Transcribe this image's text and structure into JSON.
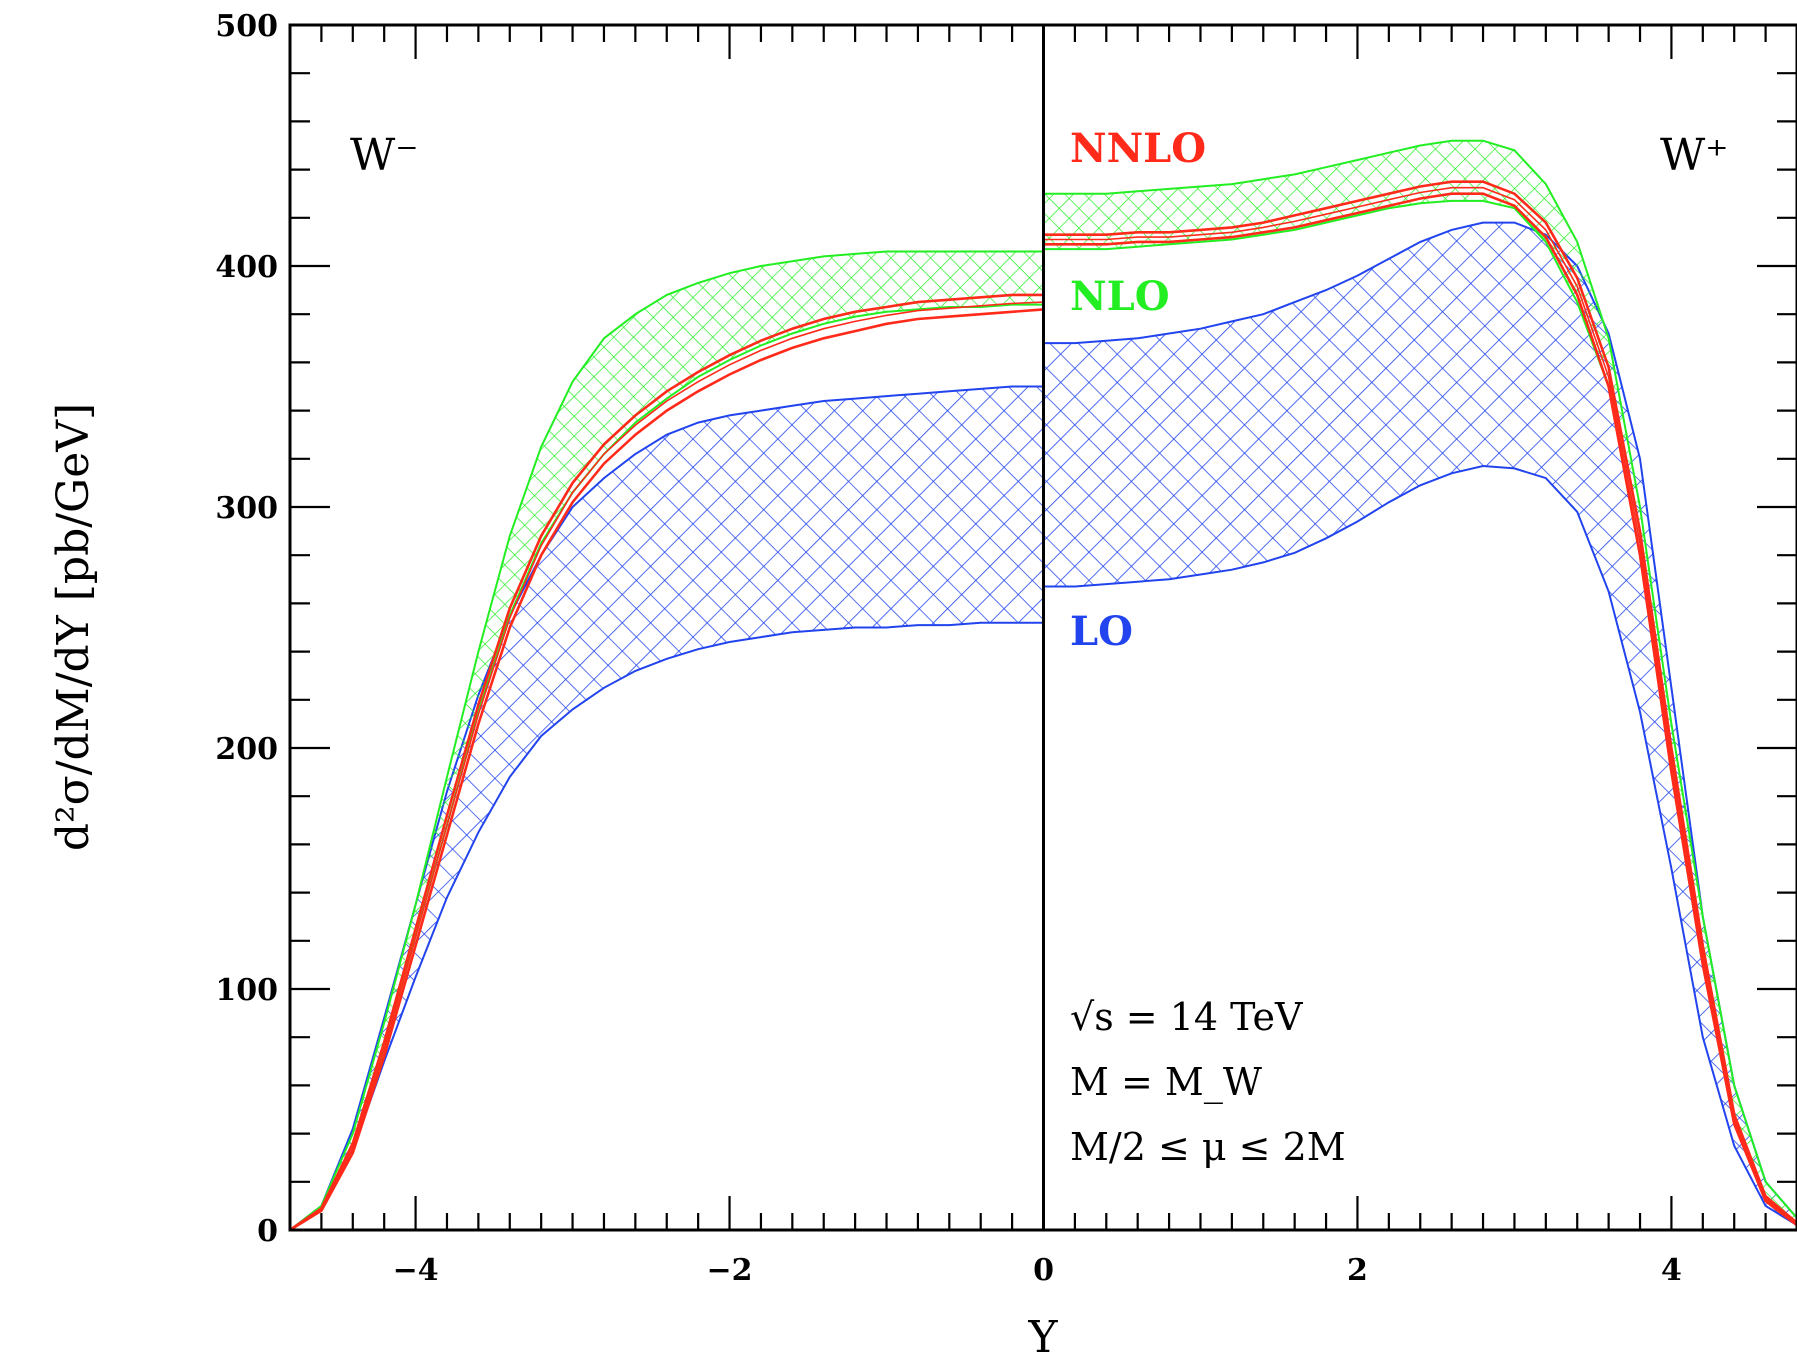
{
  "chart_data": {
    "type": "area",
    "xlabel": "Y",
    "ylabel": "d²σ/dM/dY [pb/GeV]",
    "xlim": [
      -4.8,
      4.8
    ],
    "ylim": [
      0,
      500
    ],
    "x_ticks": [
      "−4",
      "−2",
      "0",
      "2",
      "4"
    ],
    "x_tick_values": [
      -4,
      -2,
      0,
      2,
      4
    ],
    "y_ticks": [
      "0",
      "100",
      "200",
      "300",
      "400",
      "500"
    ],
    "y_tick_values": [
      0,
      100,
      200,
      300,
      400,
      500
    ],
    "grid": false,
    "corner_labels": {
      "left": "W⁻",
      "right": "W⁺"
    },
    "annotations": [
      "√s = 14 TeV",
      "M = M_W",
      "M/2 ≤ μ ≤ 2M"
    ],
    "colors": {
      "NNLO": "#ff2a1a",
      "NLO": "#22ee22",
      "LO": "#2244ee"
    },
    "series": [
      {
        "name": "LO",
        "label_position": "center",
        "W_minus": {
          "x": [
            -4.8,
            -4.6,
            -4.4,
            -4.2,
            -4.0,
            -3.8,
            -3.6,
            -3.4,
            -3.2,
            -3.0,
            -2.8,
            -2.6,
            -2.4,
            -2.2,
            -2.0,
            -1.8,
            -1.6,
            -1.4,
            -1.2,
            -1.0,
            -0.8,
            -0.6,
            -0.4,
            -0.2,
            0.0
          ],
          "upper": [
            0,
            10,
            42,
            88,
            135,
            182,
            222,
            255,
            280,
            300,
            312,
            322,
            330,
            335,
            338,
            340,
            342,
            344,
            345,
            346,
            347,
            348,
            349,
            350,
            350
          ],
          "lower": [
            0,
            8,
            33,
            70,
            105,
            138,
            165,
            188,
            205,
            216,
            225,
            232,
            237,
            241,
            244,
            246,
            248,
            249,
            250,
            250,
            251,
            251,
            252,
            252,
            252
          ]
        },
        "W_plus": {
          "x": [
            0.0,
            0.2,
            0.4,
            0.6,
            0.8,
            1.0,
            1.2,
            1.4,
            1.6,
            1.8,
            2.0,
            2.2,
            2.4,
            2.6,
            2.8,
            3.0,
            3.2,
            3.4,
            3.6,
            3.8,
            4.0,
            4.2,
            4.4,
            4.6,
            4.8
          ],
          "upper": [
            368,
            368,
            369,
            370,
            372,
            374,
            377,
            380,
            385,
            390,
            396,
            403,
            410,
            415,
            418,
            418,
            413,
            400,
            372,
            320,
            225,
            130,
            60,
            20,
            5
          ],
          "lower": [
            267,
            267,
            268,
            269,
            270,
            272,
            274,
            277,
            281,
            287,
            294,
            302,
            309,
            314,
            317,
            316,
            312,
            298,
            265,
            215,
            150,
            80,
            35,
            10,
            2
          ]
        }
      },
      {
        "name": "NLO",
        "label_position": "right",
        "W_minus": {
          "x": [
            -4.8,
            -4.6,
            -4.4,
            -4.2,
            -4.0,
            -3.8,
            -3.6,
            -3.4,
            -3.2,
            -3.0,
            -2.8,
            -2.6,
            -2.4,
            -2.2,
            -2.0,
            -1.8,
            -1.6,
            -1.4,
            -1.2,
            -1.0,
            -0.8,
            -0.6,
            -0.4,
            -0.2,
            0.0
          ],
          "upper": [
            0,
            10,
            40,
            86,
            135,
            188,
            240,
            288,
            325,
            352,
            370,
            380,
            388,
            393,
            397,
            400,
            402,
            404,
            405,
            406,
            406,
            406,
            406,
            406,
            406
          ],
          "lower": [
            0,
            8,
            32,
            75,
            122,
            168,
            215,
            255,
            285,
            306,
            322,
            335,
            345,
            354,
            361,
            367,
            372,
            376,
            379,
            381,
            382,
            383,
            383,
            384,
            384
          ]
        },
        "W_plus": {
          "x": [
            0.0,
            0.2,
            0.4,
            0.6,
            0.8,
            1.0,
            1.2,
            1.4,
            1.6,
            1.8,
            2.0,
            2.2,
            2.4,
            2.6,
            2.8,
            3.0,
            3.2,
            3.4,
            3.6,
            3.8,
            4.0,
            4.2,
            4.4,
            4.6,
            4.8
          ],
          "upper": [
            430,
            430,
            430,
            431,
            432,
            433,
            434,
            436,
            438,
            441,
            444,
            447,
            450,
            452,
            452,
            448,
            434,
            410,
            370,
            300,
            210,
            130,
            60,
            20,
            5
          ],
          "lower": [
            407,
            407,
            407,
            408,
            409,
            410,
            411,
            413,
            415,
            418,
            421,
            424,
            426,
            427,
            427,
            424,
            410,
            385,
            350,
            280,
            190,
            110,
            45,
            12,
            2
          ]
        }
      },
      {
        "name": "NNLO",
        "label_position": "right",
        "W_minus": {
          "x": [
            -4.8,
            -4.6,
            -4.4,
            -4.2,
            -4.0,
            -3.8,
            -3.6,
            -3.4,
            -3.2,
            -3.0,
            -2.8,
            -2.6,
            -2.4,
            -2.2,
            -2.0,
            -1.8,
            -1.6,
            -1.4,
            -1.2,
            -1.0,
            -0.8,
            -0.6,
            -0.4,
            -0.2,
            0.0
          ],
          "upper": [
            0,
            9,
            36,
            78,
            125,
            172,
            218,
            258,
            288,
            310,
            326,
            338,
            348,
            356,
            363,
            369,
            374,
            378,
            381,
            383,
            385,
            386,
            387,
            388,
            388
          ],
          "lower": [
            0,
            8,
            32,
            72,
            118,
            164,
            210,
            250,
            280,
            302,
            318,
            330,
            340,
            348,
            355,
            361,
            366,
            370,
            373,
            376,
            378,
            379,
            380,
            381,
            382
          ]
        },
        "W_plus": {
          "x": [
            0.0,
            0.2,
            0.4,
            0.6,
            0.8,
            1.0,
            1.2,
            1.4,
            1.6,
            1.8,
            2.0,
            2.2,
            2.4,
            2.6,
            2.8,
            3.0,
            3.2,
            3.4,
            3.6,
            3.8,
            4.0,
            4.2,
            4.4,
            4.6,
            4.8
          ],
          "upper": [
            413,
            413,
            413,
            414,
            414,
            415,
            416,
            418,
            421,
            424,
            427,
            430,
            433,
            435,
            435,
            430,
            418,
            395,
            358,
            290,
            200,
            118,
            48,
            14,
            3
          ],
          "lower": [
            409,
            409,
            409,
            410,
            410,
            411,
            412,
            414,
            416,
            419,
            422,
            425,
            428,
            430,
            430,
            425,
            412,
            388,
            350,
            280,
            190,
            110,
            44,
            12,
            2
          ]
        }
      }
    ]
  }
}
